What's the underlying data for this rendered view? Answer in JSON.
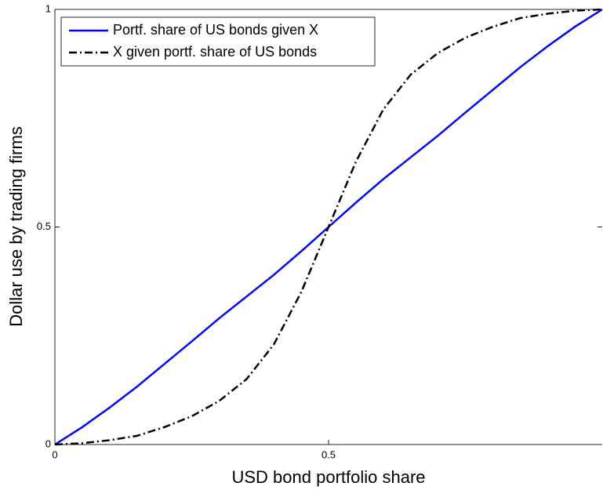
{
  "chart_data": {
    "type": "line",
    "xlabel": "USD bond portfolio share",
    "ylabel": "Dollar use by trading firms",
    "x": [
      0,
      0.05,
      0.1,
      0.15,
      0.2,
      0.25,
      0.3,
      0.35,
      0.4,
      0.45,
      0.5,
      0.55,
      0.6,
      0.65,
      0.7,
      0.75,
      0.8,
      0.85,
      0.9,
      0.95,
      1
    ],
    "series": [
      {
        "name": "Portf. share of US bonds given X",
        "color": "#0000ff",
        "linestyle": "solid",
        "values": [
          0,
          0.04,
          0.085,
          0.133,
          0.185,
          0.237,
          0.29,
          0.34,
          0.39,
          0.444,
          0.5,
          0.556,
          0.61,
          0.66,
          0.71,
          0.763,
          0.815,
          0.867,
          0.915,
          0.96,
          1
        ]
      },
      {
        "name": "X given portf. share of US bonds",
        "color": "#000000",
        "linestyle": "dashdot",
        "values": [
          0,
          0.003,
          0.01,
          0.02,
          0.04,
          0.065,
          0.1,
          0.15,
          0.23,
          0.35,
          0.5,
          0.65,
          0.77,
          0.85,
          0.9,
          0.935,
          0.96,
          0.98,
          0.99,
          0.997,
          1
        ]
      }
    ],
    "xlim": [
      0,
      1
    ],
    "ylim": [
      0,
      1
    ],
    "xticks": [
      0,
      0.5
    ],
    "yticks": [
      0,
      0.5,
      1
    ],
    "legend": "upper left"
  }
}
